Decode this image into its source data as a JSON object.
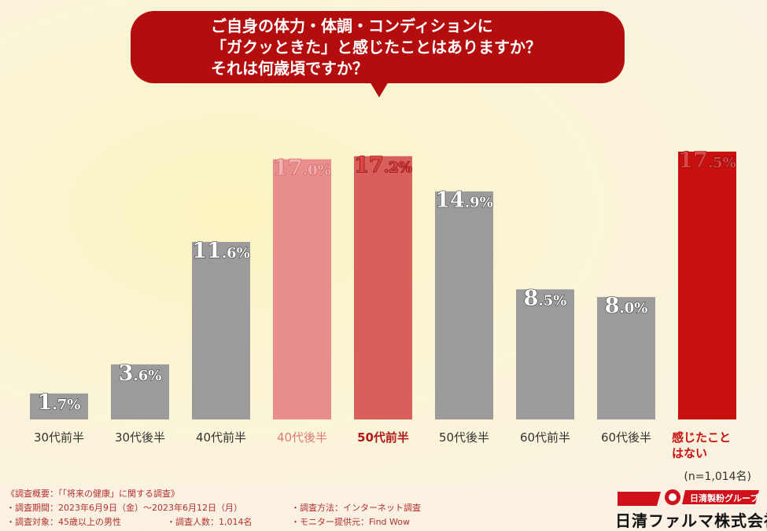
{
  "question": {
    "lines": [
      "ご自身の体力・体調・コンディションに",
      "「ガクッときた」と感じたことはありますか？",
      "それは何歳頃ですか？"
    ]
  },
  "chart_data": {
    "type": "bar",
    "categories": [
      "30代前半",
      "30代後半",
      "40代前半",
      "40代後半",
      "50代前半",
      "50代後半",
      "60代前半",
      "60代後半",
      "感じたこと\nはない"
    ],
    "values": [
      1.7,
      3.6,
      11.6,
      17.0,
      17.2,
      14.9,
      8.5,
      8.0,
      17.5
    ],
    "value_labels": [
      "1.7%",
      "3.6%",
      "11.6%",
      "17.0%",
      "17.2%",
      "14.9%",
      "8.5%",
      "8.0%",
      "17.5%"
    ],
    "unit": "%",
    "ylim": [
      0,
      17.5
    ],
    "grid": false,
    "colors": [
      "#9b9b9b",
      "#9b9b9b",
      "#9b9b9b",
      "#e98d8d",
      "#d95f5a",
      "#9b9b9b",
      "#9b9b9b",
      "#9b9b9b",
      "#c8100f"
    ],
    "label_colors": [
      "#333333",
      "#333333",
      "#333333",
      "#e07a7a",
      "#b01818",
      "#333333",
      "#333333",
      "#333333",
      "#c8100f"
    ],
    "note": "(n=1,014名)"
  },
  "footer": {
    "lines": [
      "《調査概要：「「将来の健康」に関する調査》",
      "・調査期間：2023年6月9日（金）～2023年6月12日（月）",
      "・調査方法：インターネット調査",
      "・調査対象：45歳以上の男性",
      "・調査人数：1,014名",
      "・モニター提供元：Find Wow"
    ]
  },
  "logo": {
    "group": "日清製粉グループ",
    "company": "日清ファルマ株式会社"
  }
}
